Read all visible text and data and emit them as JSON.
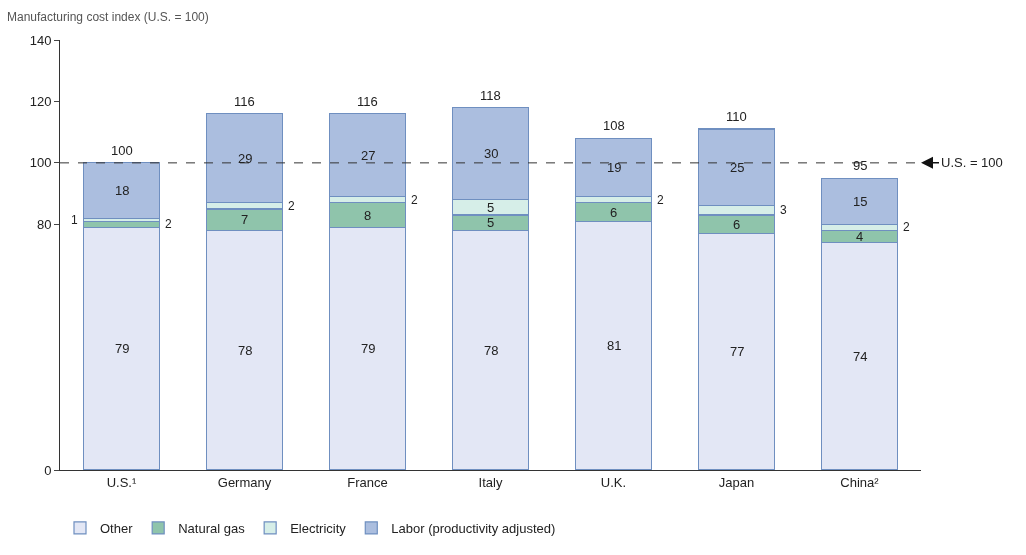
{
  "chart_data": {
    "type": "bar",
    "stacked": true,
    "ylabel": "Manufacturing cost index (U.S. = 100)",
    "categories": [
      "U.S.¹",
      "Germany",
      "France",
      "Italy",
      "U.K.",
      "Japan",
      "China²"
    ],
    "series": [
      {
        "name": "Other",
        "color": "#e3e7f5",
        "values": [
          79,
          78,
          79,
          78,
          81,
          77,
          74
        ]
      },
      {
        "name": "Natural gas",
        "color": "#8fc4ab",
        "values": [
          2,
          7,
          8,
          5,
          6,
          6,
          4
        ]
      },
      {
        "name": "Electricity",
        "color": "#d6eee8",
        "values": [
          1,
          2,
          2,
          5,
          2,
          3,
          2
        ]
      },
      {
        "name": "Labor (productivity adjusted)",
        "color": "#abbedf",
        "values": [
          18,
          29,
          27,
          30,
          19,
          25,
          15
        ]
      }
    ],
    "totals": [
      "100",
      "116",
      "116",
      "118",
      "108",
      "110",
      "95"
    ],
    "data_labels": true,
    "ylim": [
      0,
      140
    ],
    "yticks": [
      0,
      80,
      100,
      120,
      140
    ],
    "ref_lines": [
      {
        "axis": "y",
        "value": 100,
        "label": "U.S. = 100",
        "line_style": "dashed"
      }
    ],
    "legend": "bottom"
  }
}
